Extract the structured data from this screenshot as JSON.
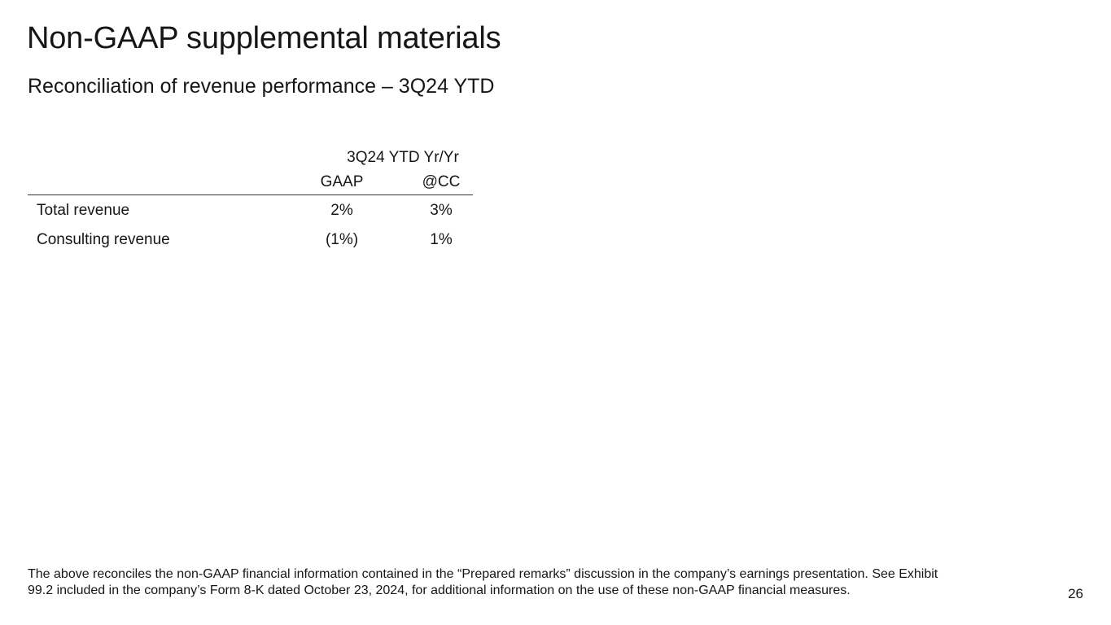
{
  "slide": {
    "title": "Non-GAAP supplemental materials",
    "subtitle": "Reconciliation of revenue performance – 3Q24 YTD",
    "page_number": "26",
    "footnote_line1": "The above reconciles the non-GAAP financial information contained in the “Prepared remarks” discussion in the company’s earnings presentation. See Exhibit",
    "footnote_line2": "99.2 included in the company’s Form 8-K dated October 23, 2024, for additional information on the use of these non-GAAP financial measures."
  },
  "table": {
    "group_header": "3Q24 YTD Yr/Yr",
    "columns": [
      "GAAP",
      "@CC"
    ],
    "rows": [
      {
        "label": "Total revenue",
        "values": [
          "2%",
          "3%"
        ]
      },
      {
        "label": "Consulting revenue",
        "values": [
          "(1%)",
          "1%"
        ]
      }
    ]
  }
}
